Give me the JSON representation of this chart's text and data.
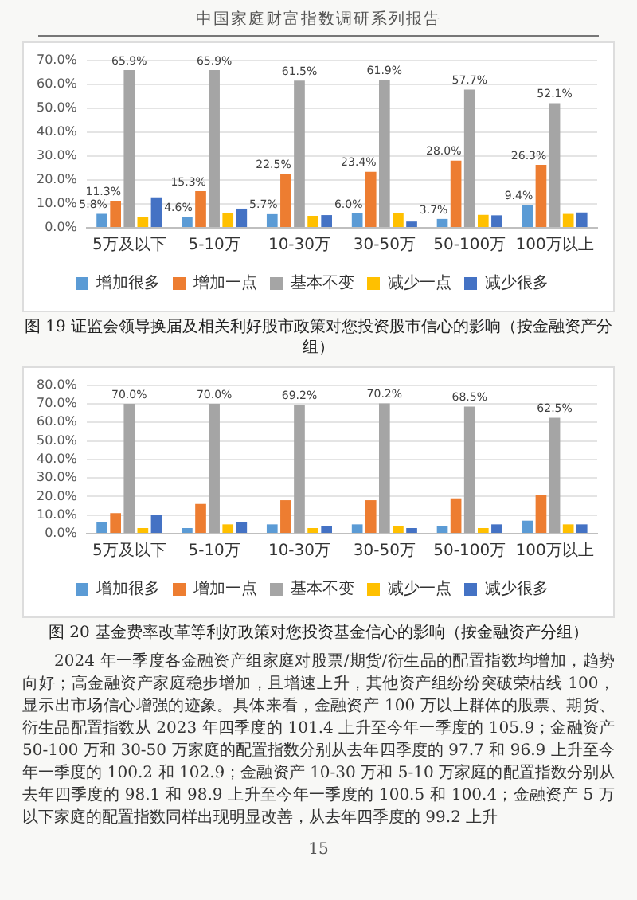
{
  "chart_data": [
    {
      "type": "other",
      "annotations": [
        "中国家庭财富指数调研系列报告"
      ]
    },
    {
      "type": "bar",
      "title": "图 19 证监会领导换届及相关利好股市政策对您投资股市信心的影响（按金融资产分组）",
      "categories": [
        "5万及以下",
        "5-10万",
        "10-30万",
        "30-50万",
        "50-100万",
        "100万以上"
      ],
      "series": [
        {
          "name": "增加很多",
          "color": "#5b9bd5",
          "values": [
            5.8,
            4.6,
            5.7,
            6.0,
            3.7,
            9.4
          ],
          "value_labels": [
            "5.8%",
            "4.6%",
            "5.7%",
            "6.0%",
            "3.7%",
            "9.4%"
          ]
        },
        {
          "name": "增加一点",
          "color": "#ed7d31",
          "values": [
            11.3,
            15.3,
            22.5,
            23.4,
            28.0,
            26.3
          ],
          "value_labels": [
            "11.3%",
            "15.3%",
            "22.5%",
            "23.4%",
            "28.0%",
            "26.3%"
          ]
        },
        {
          "name": "基本不变",
          "color": "#a5a5a5",
          "values": [
            65.9,
            65.9,
            61.5,
            61.9,
            57.7,
            52.1
          ],
          "value_labels": [
            "65.9%",
            "65.9%",
            "61.5%",
            "61.9%",
            "57.7%",
            "52.1%"
          ]
        },
        {
          "name": "减少一点",
          "color": "#ffc000",
          "values": [
            4.3,
            6.2,
            5.0,
            6.1,
            5.4,
            5.8
          ]
        },
        {
          "name": "减少很多",
          "color": "#4472c4",
          "values": [
            12.7,
            8.0,
            5.3,
            2.6,
            5.2,
            6.4
          ]
        }
      ],
      "ylim": [
        0,
        70
      ],
      "yticks": [
        {
          "value": 0,
          "label": "0.0%"
        },
        {
          "value": 10,
          "label": "10.0%"
        },
        {
          "value": 20,
          "label": "20.0%"
        },
        {
          "value": 30,
          "label": "30.0%"
        },
        {
          "value": 40,
          "label": "40.0%"
        },
        {
          "value": 50,
          "label": "50.0%"
        },
        {
          "value": 60,
          "label": "60.0%"
        },
        {
          "value": 70,
          "label": "70.0%"
        }
      ],
      "grid": "y",
      "legend": "bottom"
    },
    {
      "type": "bar",
      "title": "图 20 基金费率改革等利好政策对您投资基金信心的影响（按金融资产分组）",
      "categories": [
        "5万及以下",
        "5-10万",
        "10-30万",
        "30-50万",
        "50-100万",
        "100万以上"
      ],
      "series": [
        {
          "name": "增加很多",
          "color": "#5b9bd5",
          "values": [
            6,
            3,
            5,
            5,
            4,
            7
          ]
        },
        {
          "name": "增加一点",
          "color": "#ed7d31",
          "values": [
            11,
            16,
            18,
            18,
            19,
            21
          ]
        },
        {
          "name": "基本不变",
          "color": "#a5a5a5",
          "values": [
            70.0,
            70.0,
            69.2,
            70.2,
            68.5,
            62.5
          ],
          "value_labels": [
            "70.0%",
            "70.0%",
            "69.2%",
            "70.2%",
            "68.5%",
            "62.5%"
          ]
        },
        {
          "name": "减少一点",
          "color": "#ffc000",
          "values": [
            3,
            5,
            3,
            4,
            3,
            5
          ]
        },
        {
          "name": "减少很多",
          "color": "#4472c4",
          "values": [
            10,
            6,
            4,
            3,
            5,
            5
          ]
        }
      ],
      "ylim": [
        0,
        80
      ],
      "yticks": [
        {
          "value": 0,
          "label": "0.0%"
        },
        {
          "value": 10,
          "label": "10.0%"
        },
        {
          "value": 20,
          "label": "20.0%"
        },
        {
          "value": 30,
          "label": "30.0%"
        },
        {
          "value": 40,
          "label": "40.0%"
        },
        {
          "value": 50,
          "label": "50.0%"
        },
        {
          "value": 60,
          "label": "60.0%"
        },
        {
          "value": 70,
          "label": "70.0%"
        },
        {
          "value": 80,
          "label": "80.0%"
        }
      ],
      "grid": "y",
      "legend": "bottom"
    },
    {
      "type": "other",
      "annotations": [
        "2024 年一季度各金融资产组家庭对股票/期货/衍生品的配置指数均增加，趋势向好；高金融资产家庭稳步增加，且增速上升，其他资产组纷纷突破荣枯线 100，显示出市场信心增强的迹象。具体来看，金融资产 100 万以上群体的股票、期货、衍生品配置指数从 2023 年四季度的 101.4 上升至今年一季度的 105.9；金融资产 50-100 万和 30-50 万家庭的配置指数分别从去年四季度的 97.7 和 96.9 上升至今年一季度的 100.2 和 102.9；金融资产 10-30 万和 5-10 万家庭的配置指数分别从去年四季度的 98.1 和 98.9 上升至今年一季度的 100.5 和 100.4；金融资产 5 万以下家庭的配置指数同样出现明显改善，从去年四季度的 99.2 上升",
        "15"
      ]
    }
  ]
}
